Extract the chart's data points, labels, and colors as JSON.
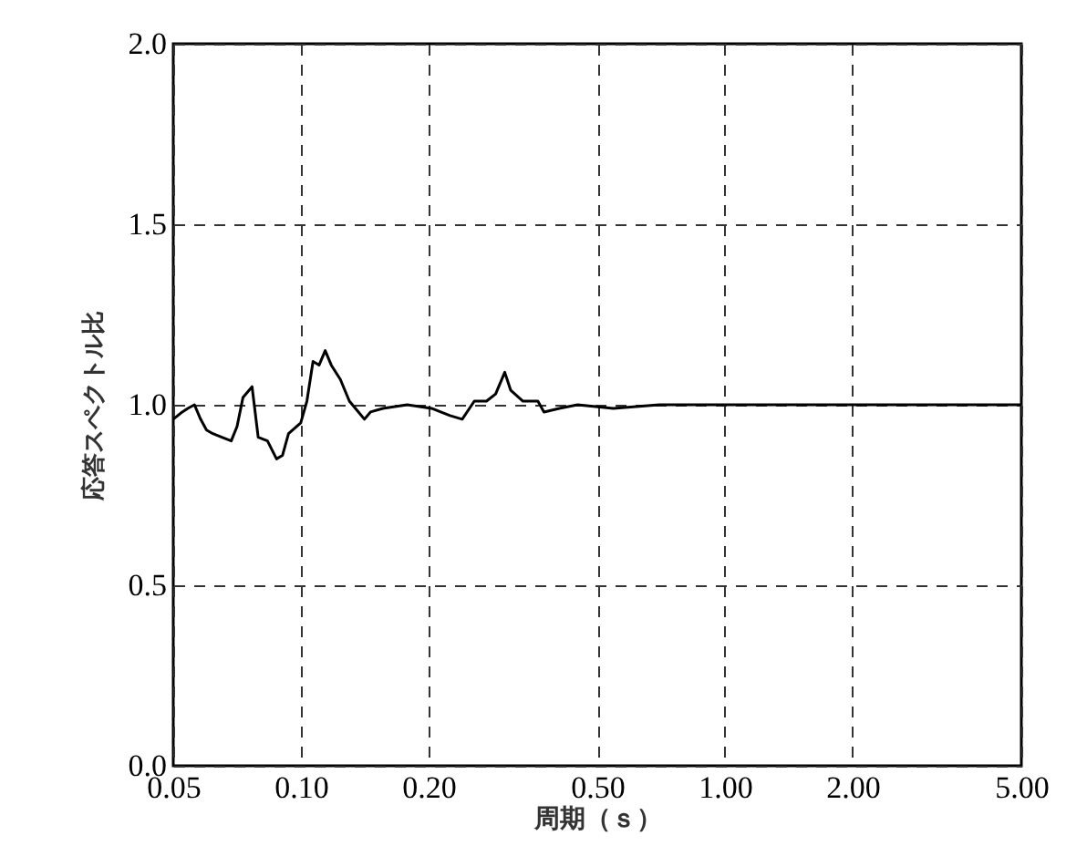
{
  "chart_data": {
    "type": "line",
    "xlabel": "周期（ｓ）",
    "ylabel": "応答スペクトル比",
    "log": "x",
    "grid": true,
    "line_style": "solid",
    "marker": "none",
    "xlim": [
      0.05,
      5
    ],
    "ylim": [
      0,
      2
    ],
    "xticks": [
      0.05,
      {
        "value": 0.1,
        "label": "0.10"
      },
      {
        "value": 0.2,
        "label": "0.20"
      },
      {
        "value": 0.5,
        "label": "0.50"
      },
      {
        "value": 1,
        "label": "1.00"
      },
      {
        "value": 2,
        "label": "2.00"
      },
      {
        "value": 5,
        "label": "5.00"
      }
    ],
    "yticks": [
      {
        "value": 0,
        "label": "0.0"
      },
      0.5,
      {
        "value": 1,
        "label": "1.0"
      },
      1.5,
      {
        "value": 2,
        "label": "2.0"
      }
    ],
    "series": [
      {
        "color": "#000000",
        "x": [
          0.05,
          0.0525,
          0.0541,
          0.0561,
          0.058,
          0.0599,
          0.062,
          0.0651,
          0.0685,
          0.0707,
          0.073,
          0.0767,
          0.0793,
          0.0834,
          0.0876,
          0.0905,
          0.0935,
          0.0999,
          0.1033,
          0.1068,
          0.1104,
          0.1141,
          0.1179,
          0.1239,
          0.1301,
          0.1367,
          0.1412,
          0.1459,
          0.1561,
          0.1781,
          0.2033,
          0.2247,
          0.2401,
          0.2564,
          0.274,
          0.2879,
          0.3025,
          0.3125,
          0.3339,
          0.3621,
          0.3743,
          0.4067,
          0.4493,
          0.5454,
          0.7,
          1,
          2,
          5
        ],
        "values": [
          0.96,
          0.98,
          0.99,
          1.0,
          0.96,
          0.93,
          0.92,
          0.91,
          0.9,
          0.94,
          1.02,
          1.05,
          0.91,
          0.9,
          0.85,
          0.86,
          0.92,
          0.95,
          1.01,
          1.12,
          1.11,
          1.15,
          1.11,
          1.07,
          1.01,
          0.98,
          0.96,
          0.98,
          0.99,
          1.0,
          0.99,
          0.97,
          0.96,
          1.01,
          1.01,
          1.03,
          1.09,
          1.04,
          1.01,
          1.01,
          0.98,
          0.99,
          1.0,
          0.99,
          1.0,
          1.0,
          1.0,
          1.0
        ]
      }
    ]
  }
}
